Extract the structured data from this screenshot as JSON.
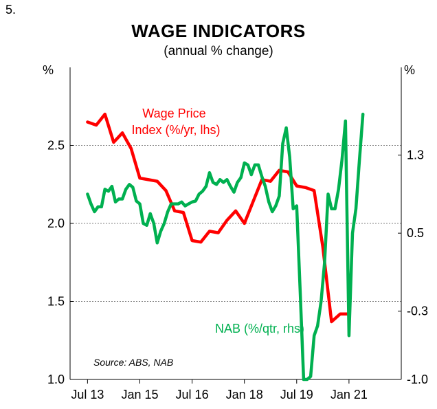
{
  "figure_number": "5.",
  "chart_data": {
    "type": "line",
    "title": "WAGE INDICATORS",
    "subtitle": "(annual % change)",
    "left_axis": {
      "unit": "%",
      "ylim": [
        1.0,
        3.0
      ],
      "ticks": [
        "1.0",
        "1.5",
        "2.0",
        "2.5"
      ],
      "tick_values": [
        1.0,
        1.5,
        2.0,
        2.5
      ]
    },
    "right_axis": {
      "unit": "%",
      "ylim": [
        -1.0,
        2.2
      ],
      "ticks": [
        "-1.0",
        "-0.3",
        "0.5",
        "1.3"
      ],
      "tick_values": [
        -1.0,
        -0.3,
        0.5,
        1.3
      ]
    },
    "x_axis": {
      "xlim": [
        2013.0,
        2022.5
      ],
      "ticks": [
        "Jul 13",
        "Jan 15",
        "Jul 16",
        "Jan 18",
        "Jul 19",
        "Jan 21"
      ],
      "tick_values": [
        2013.5,
        2015.0,
        2016.5,
        2018.0,
        2019.5,
        2021.0
      ]
    },
    "gridlines": true,
    "series": [
      {
        "name": "Wage Price Index (%/yr, lhs)",
        "label_lines": [
          "Wage Price",
          "Index (%/yr, lhs)"
        ],
        "axis": "left",
        "color": "#ff0000",
        "x": [
          2013.5,
          2013.75,
          2014.0,
          2014.25,
          2014.5,
          2014.75,
          2015.0,
          2015.25,
          2015.5,
          2015.75,
          2016.0,
          2016.25,
          2016.5,
          2016.75,
          2017.0,
          2017.25,
          2017.5,
          2017.75,
          2018.0,
          2018.25,
          2018.5,
          2018.75,
          2019.0,
          2019.25,
          2019.5,
          2019.75,
          2020.0,
          2020.25,
          2020.5,
          2020.75,
          2021.0
        ],
        "y": [
          2.65,
          2.63,
          2.7,
          2.52,
          2.58,
          2.48,
          2.29,
          2.28,
          2.27,
          2.21,
          2.08,
          2.07,
          1.89,
          1.88,
          1.95,
          1.94,
          2.02,
          2.08,
          2.0,
          2.14,
          2.28,
          2.27,
          2.34,
          2.33,
          2.24,
          2.23,
          2.21,
          1.85,
          1.37,
          1.42,
          1.42
        ]
      },
      {
        "name": "NAB (%/qtr, rhs)",
        "label_lines": [
          "NAB (%/qtr, rhs)"
        ],
        "axis": "right",
        "color": "#00b050",
        "x": [
          2013.5,
          2013.6,
          2013.7,
          2013.8,
          2013.9,
          2014.0,
          2014.1,
          2014.2,
          2014.3,
          2014.4,
          2014.5,
          2014.6,
          2014.7,
          2014.8,
          2014.9,
          2015.0,
          2015.1,
          2015.2,
          2015.3,
          2015.4,
          2015.5,
          2015.6,
          2015.7,
          2015.8,
          2015.9,
          2016.0,
          2016.1,
          2016.2,
          2016.3,
          2016.4,
          2016.5,
          2016.6,
          2016.7,
          2016.8,
          2016.9,
          2017.0,
          2017.1,
          2017.2,
          2017.3,
          2017.4,
          2017.5,
          2017.6,
          2017.7,
          2017.8,
          2017.9,
          2018.0,
          2018.1,
          2018.2,
          2018.3,
          2018.4,
          2018.5,
          2018.6,
          2018.7,
          2018.8,
          2018.9,
          2019.0,
          2019.1,
          2019.2,
          2019.3,
          2019.4,
          2019.5,
          2019.6,
          2019.7,
          2019.8,
          2019.9,
          2020.0,
          2020.1,
          2020.2,
          2020.3,
          2020.4,
          2020.5,
          2020.6,
          2020.7,
          2020.8,
          2020.9,
          2021.0,
          2021.1,
          2021.2,
          2021.3,
          2021.4
        ],
        "y": [
          0.9,
          0.8,
          0.72,
          0.77,
          0.77,
          0.95,
          0.93,
          0.98,
          0.82,
          0.85,
          0.85,
          0.95,
          1.0,
          0.97,
          0.83,
          0.8,
          0.6,
          0.58,
          0.7,
          0.6,
          0.4,
          0.52,
          0.6,
          0.72,
          0.8,
          0.8,
          0.8,
          0.82,
          0.78,
          0.8,
          0.82,
          0.83,
          0.9,
          0.93,
          0.98,
          1.12,
          1.02,
          1.0,
          1.05,
          1.02,
          1.05,
          0.98,
          0.92,
          1.02,
          1.07,
          1.22,
          1.2,
          1.1,
          1.2,
          1.2,
          1.08,
          0.98,
          0.82,
          0.72,
          0.78,
          0.88,
          1.42,
          1.58,
          1.28,
          0.75,
          0.78,
          -0.1,
          -1.0,
          -1.0,
          -0.97,
          -0.55,
          -0.45,
          -0.2,
          0.2,
          0.9,
          0.75,
          0.75,
          0.95,
          1.25,
          1.65,
          -0.55,
          0.5,
          0.75,
          1.25,
          1.72
        ]
      }
    ],
    "annotations": {
      "source": "Source: ABS, NAB"
    }
  }
}
